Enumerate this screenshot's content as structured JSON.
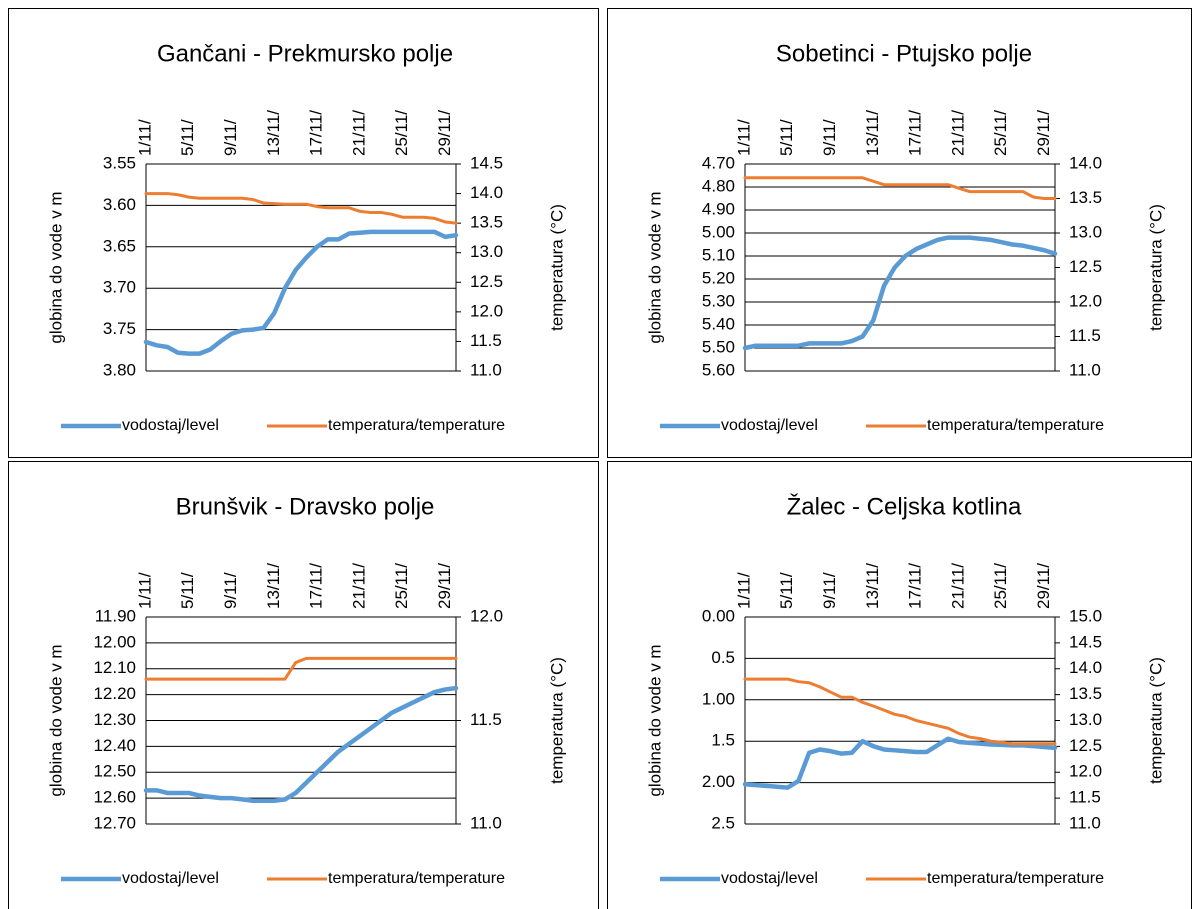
{
  "chart_data": [
    {
      "type": "line",
      "title": "Gančani - Prekmursko polje",
      "y_label": "globina do vode v m",
      "y2_label": "temperatura (°C)",
      "categories": [
        "1/11/",
        null,
        null,
        null,
        "5/11/",
        null,
        null,
        null,
        "9/11/",
        null,
        null,
        null,
        "13/11/",
        null,
        null,
        null,
        "17/11/",
        null,
        null,
        null,
        "21/11/",
        null,
        null,
        null,
        "25/11/",
        null,
        null,
        null,
        "29/11/",
        null
      ],
      "ylim": [
        3.8,
        3.55
      ],
      "yticks": [
        3.55,
        {
          "value": 3.6,
          "label": "3.60"
        },
        3.65,
        {
          "value": 3.7,
          "label": "3.70"
        },
        3.75,
        {
          "value": 3.8,
          "label": "3.80"
        }
      ],
      "y2lim": [
        11,
        14.5
      ],
      "y2ticks": [
        14.5,
        {
          "value": 14,
          "label": "14.0"
        },
        13.5,
        {
          "value": 13,
          "label": "13.0"
        },
        12.5,
        {
          "value": 12,
          "label": "12.0"
        },
        11.5,
        {
          "value": 11,
          "label": "11.0"
        }
      ],
      "grid": true,
      "series": [
        {
          "name": "vodostaj/level",
          "color": "#5b9bd5",
          "values": [
            3.765,
            3.769,
            3.771,
            3.778,
            3.779,
            3.779,
            3.774,
            3.764,
            3.755,
            3.751,
            3.75,
            3.748,
            3.73,
            3.7,
            3.678,
            3.663,
            3.65,
            3.641,
            3.641,
            3.634,
            3.633,
            3.632,
            3.632,
            3.632,
            3.632,
            3.632,
            3.632,
            3.632,
            3.638,
            3.636
          ]
        },
        {
          "name": "temperatura/temperature",
          "color": "#ed7d31",
          "axis": "y2",
          "values": [
            14.0,
            14.0,
            14.0,
            13.98,
            13.94,
            13.92,
            13.92,
            13.92,
            13.92,
            13.92,
            13.9,
            13.84,
            13.83,
            13.82,
            13.82,
            13.82,
            13.78,
            13.76,
            13.76,
            13.76,
            13.7,
            13.68,
            13.68,
            13.65,
            13.6,
            13.6,
            13.6,
            13.58,
            13.52,
            13.5
          ]
        }
      ]
    },
    {
      "type": "line",
      "title": "Sobetinci - Ptujsko polje",
      "y_label": "globina do vode v m",
      "y2_label": "temperatura (°C)",
      "categories": [
        "1/11/",
        null,
        null,
        null,
        "5/11/",
        null,
        null,
        null,
        "9/11/",
        null,
        null,
        null,
        "13/11/",
        null,
        null,
        null,
        "17/11/",
        null,
        null,
        null,
        "21/11/",
        null,
        null,
        null,
        "25/11/",
        null,
        null,
        null,
        "29/11/",
        null
      ],
      "ylim": [
        5.6,
        4.7
      ],
      "yticks": [
        {
          "value": 4.7,
          "label": "4.70"
        },
        {
          "value": 4.8,
          "label": "4.80"
        },
        {
          "value": 4.9,
          "label": "4.90"
        },
        {
          "value": 5.0,
          "label": "5.00"
        },
        {
          "value": 5.1,
          "label": "5.10"
        },
        {
          "value": 5.2,
          "label": "5.20"
        },
        {
          "value": 5.3,
          "label": "5.30"
        },
        {
          "value": 5.4,
          "label": "5.40"
        },
        {
          "value": 5.5,
          "label": "5.50"
        },
        {
          "value": 5.6,
          "label": "5.60"
        }
      ],
      "y2lim": [
        11,
        14
      ],
      "y2ticks": [
        {
          "value": 14,
          "label": "14.0"
        },
        13.5,
        {
          "value": 13,
          "label": "13.0"
        },
        12.5,
        {
          "value": 12,
          "label": "12.0"
        },
        11.5,
        {
          "value": 11,
          "label": "11.0"
        }
      ],
      "grid": true,
      "series": [
        {
          "name": "vodostaj/level",
          "color": "#5b9bd5",
          "values": [
            5.5,
            5.49,
            5.49,
            5.49,
            5.49,
            5.49,
            5.48,
            5.48,
            5.48,
            5.48,
            5.47,
            5.45,
            5.38,
            5.23,
            5.15,
            5.1,
            5.07,
            5.05,
            5.03,
            5.02,
            5.02,
            5.02,
            5.025,
            5.03,
            5.04,
            5.05,
            5.055,
            5.065,
            5.075,
            5.09
          ]
        },
        {
          "name": "temperatura/temperature",
          "color": "#ed7d31",
          "axis": "y2",
          "values": [
            13.8,
            13.8,
            13.8,
            13.8,
            13.8,
            13.8,
            13.8,
            13.8,
            13.8,
            13.8,
            13.8,
            13.8,
            13.75,
            13.7,
            13.7,
            13.7,
            13.7,
            13.7,
            13.7,
            13.7,
            13.65,
            13.6,
            13.6,
            13.6,
            13.6,
            13.6,
            13.6,
            13.52,
            13.5,
            13.5
          ]
        }
      ]
    },
    {
      "type": "line",
      "title": "Brunšvik - Dravsko polje",
      "y_label": "globina do vode v m",
      "y2_label": "temperatura (°C)",
      "categories": [
        "1/11/",
        null,
        null,
        null,
        "5/11/",
        null,
        null,
        null,
        "9/11/",
        null,
        null,
        null,
        "13/11/",
        null,
        null,
        null,
        "17/11/",
        null,
        null,
        null,
        "21/11/",
        null,
        null,
        null,
        "25/11/",
        null,
        null,
        null,
        "29/11/",
        null
      ],
      "ylim": [
        12.7,
        11.9
      ],
      "yticks": [
        {
          "value": 11.9,
          "label": "11.90"
        },
        {
          "value": 12.0,
          "label": "12.00"
        },
        {
          "value": 12.1,
          "label": "12.10"
        },
        {
          "value": 12.2,
          "label": "12.20"
        },
        {
          "value": 12.3,
          "label": "12.30"
        },
        {
          "value": 12.4,
          "label": "12.40"
        },
        {
          "value": 12.5,
          "label": "12.50"
        },
        {
          "value": 12.6,
          "label": "12.60"
        },
        {
          "value": 12.7,
          "label": "12.70"
        }
      ],
      "y2lim": [
        11,
        12
      ],
      "y2ticks": [
        {
          "value": 12,
          "label": "12.0"
        },
        11.5,
        {
          "value": 11,
          "label": "11.0"
        }
      ],
      "grid": true,
      "series": [
        {
          "name": "vodostaj/level",
          "color": "#5b9bd5",
          "values": [
            12.57,
            12.57,
            12.58,
            12.58,
            12.58,
            12.59,
            12.595,
            12.6,
            12.6,
            12.605,
            12.61,
            12.61,
            12.61,
            12.605,
            12.58,
            12.54,
            12.5,
            12.46,
            12.42,
            12.39,
            12.36,
            12.33,
            12.3,
            12.27,
            12.25,
            12.23,
            12.21,
            12.19,
            12.18,
            12.175
          ]
        },
        {
          "name": "temperatura/temperature",
          "color": "#ed7d31",
          "axis": "y2",
          "values": [
            11.7,
            11.7,
            11.7,
            11.7,
            11.7,
            11.7,
            11.7,
            11.7,
            11.7,
            11.7,
            11.7,
            11.7,
            11.7,
            11.7,
            11.78,
            11.8,
            11.8,
            11.8,
            11.8,
            11.8,
            11.8,
            11.8,
            11.8,
            11.8,
            11.8,
            11.8,
            11.8,
            11.8,
            11.8,
            11.8
          ]
        }
      ]
    },
    {
      "type": "line",
      "title": "Žalec - Celjska kotlina",
      "y_label": "globina do vode v m",
      "y2_label": "temperatura (°C)",
      "categories": [
        "1/11/",
        null,
        null,
        null,
        "5/11/",
        null,
        null,
        null,
        "9/11/",
        null,
        null,
        null,
        "13/11/",
        null,
        null,
        null,
        "17/11/",
        null,
        null,
        null,
        "21/11/",
        null,
        null,
        null,
        "25/11/",
        null,
        null,
        null,
        "29/11/",
        null
      ],
      "ylim": [
        2.5,
        0
      ],
      "yticks": [
        {
          "value": 0,
          "label": "0.00"
        },
        0.5,
        {
          "value": 1,
          "label": "1.00"
        },
        1.5,
        {
          "value": 2,
          "label": "2.00"
        },
        2.5
      ],
      "y2lim": [
        11,
        15
      ],
      "y2ticks": [
        {
          "value": 15,
          "label": "15.0"
        },
        14.5,
        {
          "value": 14,
          "label": "14.0"
        },
        13.5,
        {
          "value": 13,
          "label": "13.0"
        },
        12.5,
        {
          "value": 12,
          "label": "12.0"
        },
        11.5,
        {
          "value": 11,
          "label": "11.0"
        }
      ],
      "grid": true,
      "series": [
        {
          "name": "vodostaj/level",
          "color": "#5b9bd5",
          "values": [
            2.02,
            2.03,
            2.04,
            2.05,
            2.06,
            1.98,
            1.64,
            1.6,
            1.62,
            1.65,
            1.64,
            1.5,
            1.56,
            1.6,
            1.61,
            1.62,
            1.63,
            1.63,
            1.55,
            1.47,
            1.51,
            1.52,
            1.53,
            1.54,
            1.545,
            1.55,
            1.55,
            1.56,
            1.57,
            1.58
          ]
        },
        {
          "name": "temperatura/temperature",
          "color": "#ed7d31",
          "axis": "y2",
          "values": [
            13.8,
            13.8,
            13.8,
            13.8,
            13.8,
            13.75,
            13.73,
            13.65,
            13.55,
            13.45,
            13.45,
            13.35,
            13.28,
            13.2,
            13.12,
            13.08,
            13.0,
            12.95,
            12.9,
            12.85,
            12.75,
            12.68,
            12.65,
            12.6,
            12.58,
            12.55,
            12.55,
            12.55,
            12.55,
            12.55
          ]
        }
      ]
    }
  ]
}
